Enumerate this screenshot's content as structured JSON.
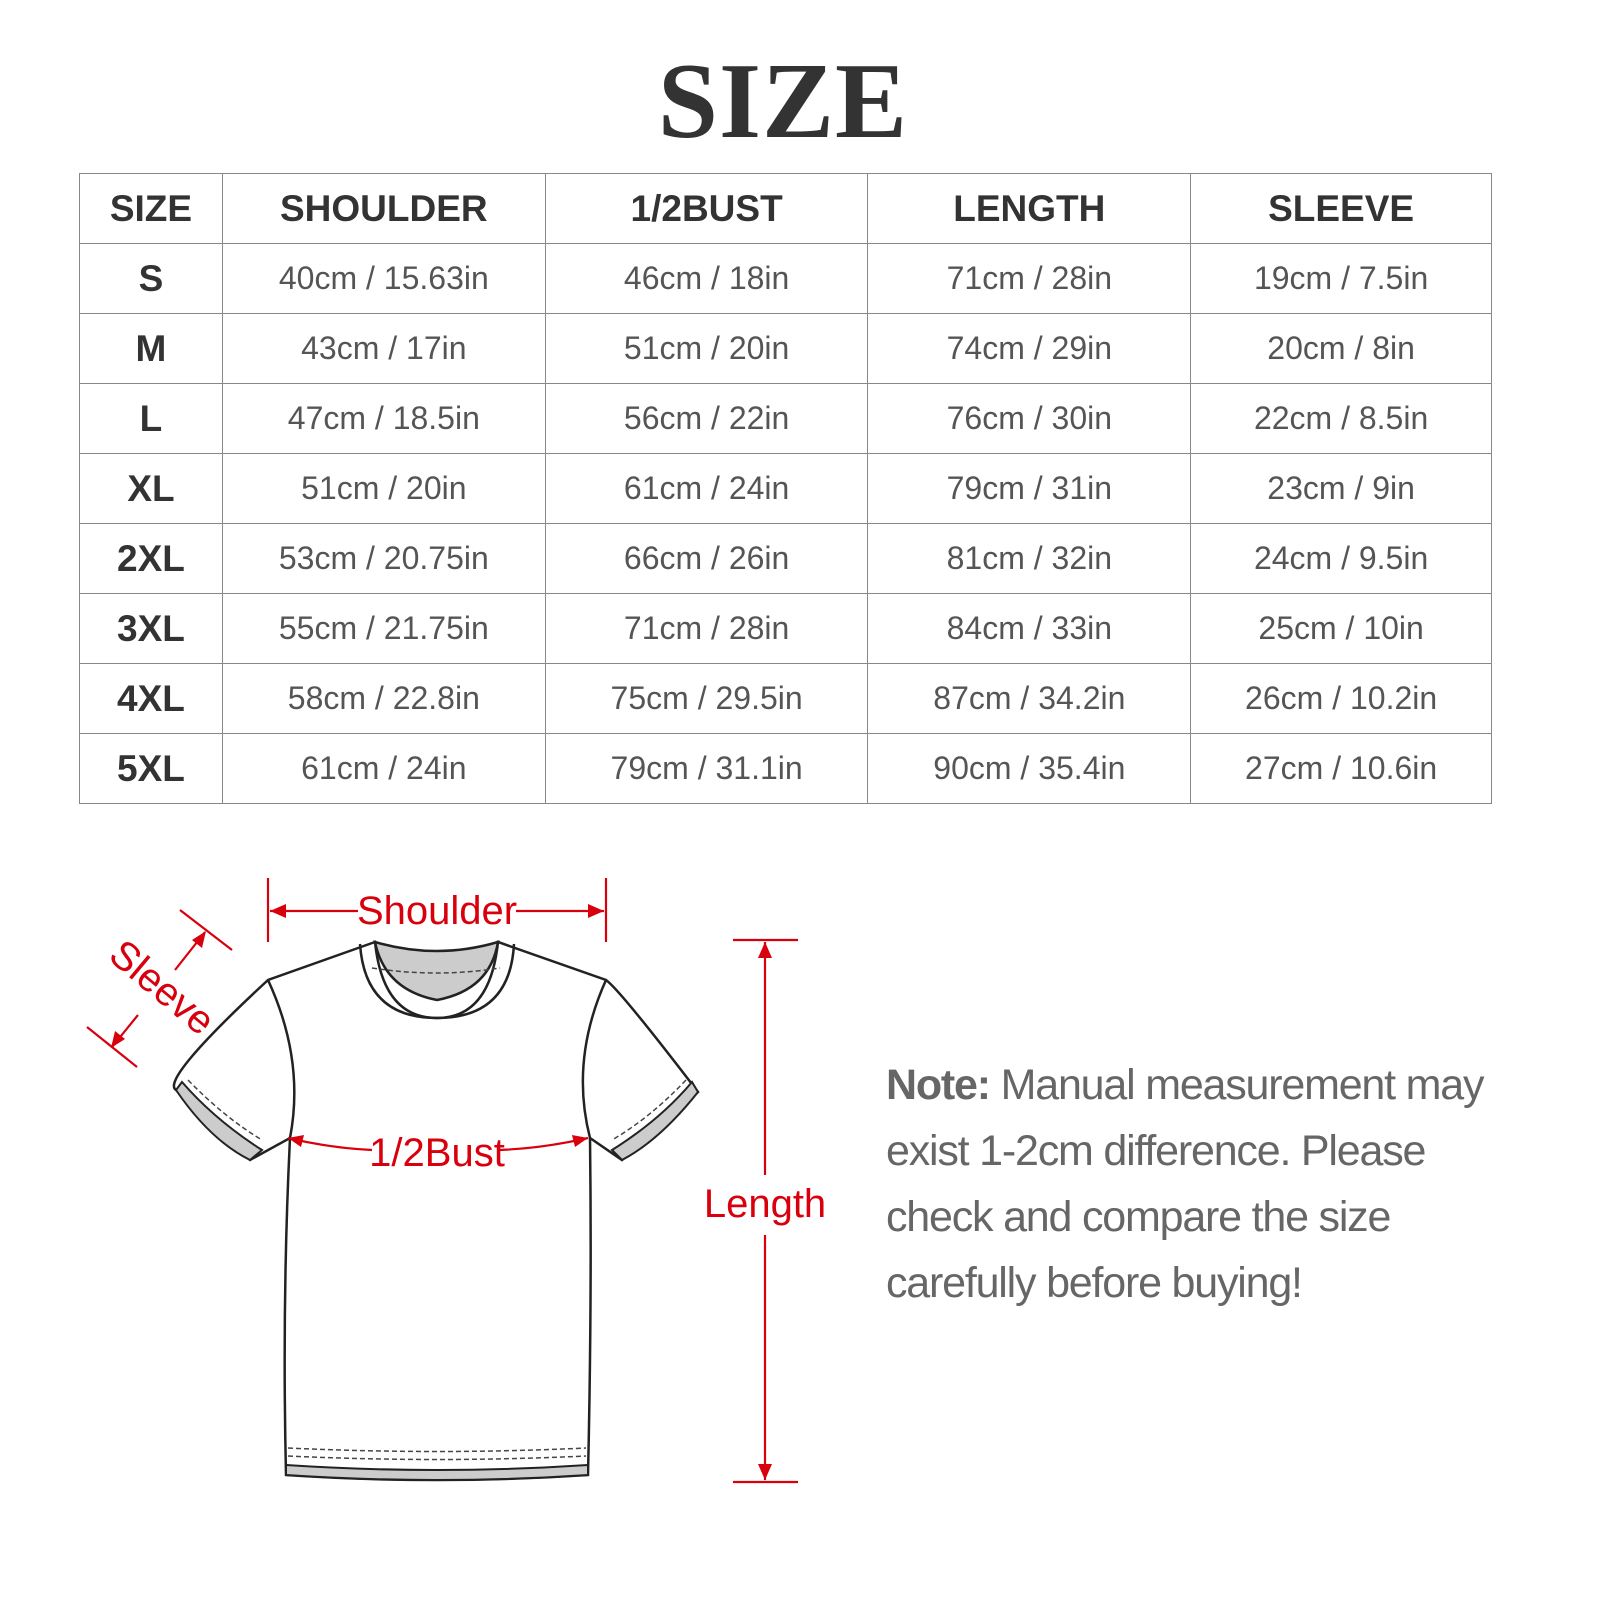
{
  "title": "SIZE",
  "table": {
    "headers": [
      "SIZE",
      "SHOULDER",
      "1/2BUST",
      "LENGTH",
      "SLEEVE"
    ],
    "rows": [
      [
        "S",
        "40cm / 15.63in",
        "46cm / 18in",
        "71cm / 28in",
        "19cm / 7.5in"
      ],
      [
        "M",
        "43cm / 17in",
        "51cm / 20in",
        "74cm / 29in",
        "20cm / 8in"
      ],
      [
        "L",
        "47cm / 18.5in",
        "56cm / 22in",
        "76cm / 30in",
        "22cm / 8.5in"
      ],
      [
        "XL",
        "51cm / 20in",
        "61cm / 24in",
        "79cm / 31in",
        "23cm / 9in"
      ],
      [
        "2XL",
        "53cm / 20.75in",
        "66cm / 26in",
        "81cm / 32in",
        "24cm / 9.5in"
      ],
      [
        "3XL",
        "55cm / 21.75in",
        "71cm / 28in",
        "84cm / 33in",
        "25cm / 10in"
      ],
      [
        "4XL",
        "58cm / 22.8in",
        "75cm / 29.5in",
        "87cm / 34.2in",
        "26cm / 10.2in"
      ],
      [
        "5XL",
        "61cm / 24in",
        "79cm / 31.1in",
        "90cm / 35.4in",
        "27cm / 10.6in"
      ]
    ]
  },
  "diagram": {
    "labels": {
      "shoulder": "Shoulder",
      "sleeve": "Sleeve",
      "bust": "1/2Bust",
      "length": "Length"
    },
    "accent_color": "#d9000d"
  },
  "note": {
    "label": "Note:",
    "text": " Manual measurement may exist 1-2cm difference. Please check and compare the size carefully before buying!"
  }
}
